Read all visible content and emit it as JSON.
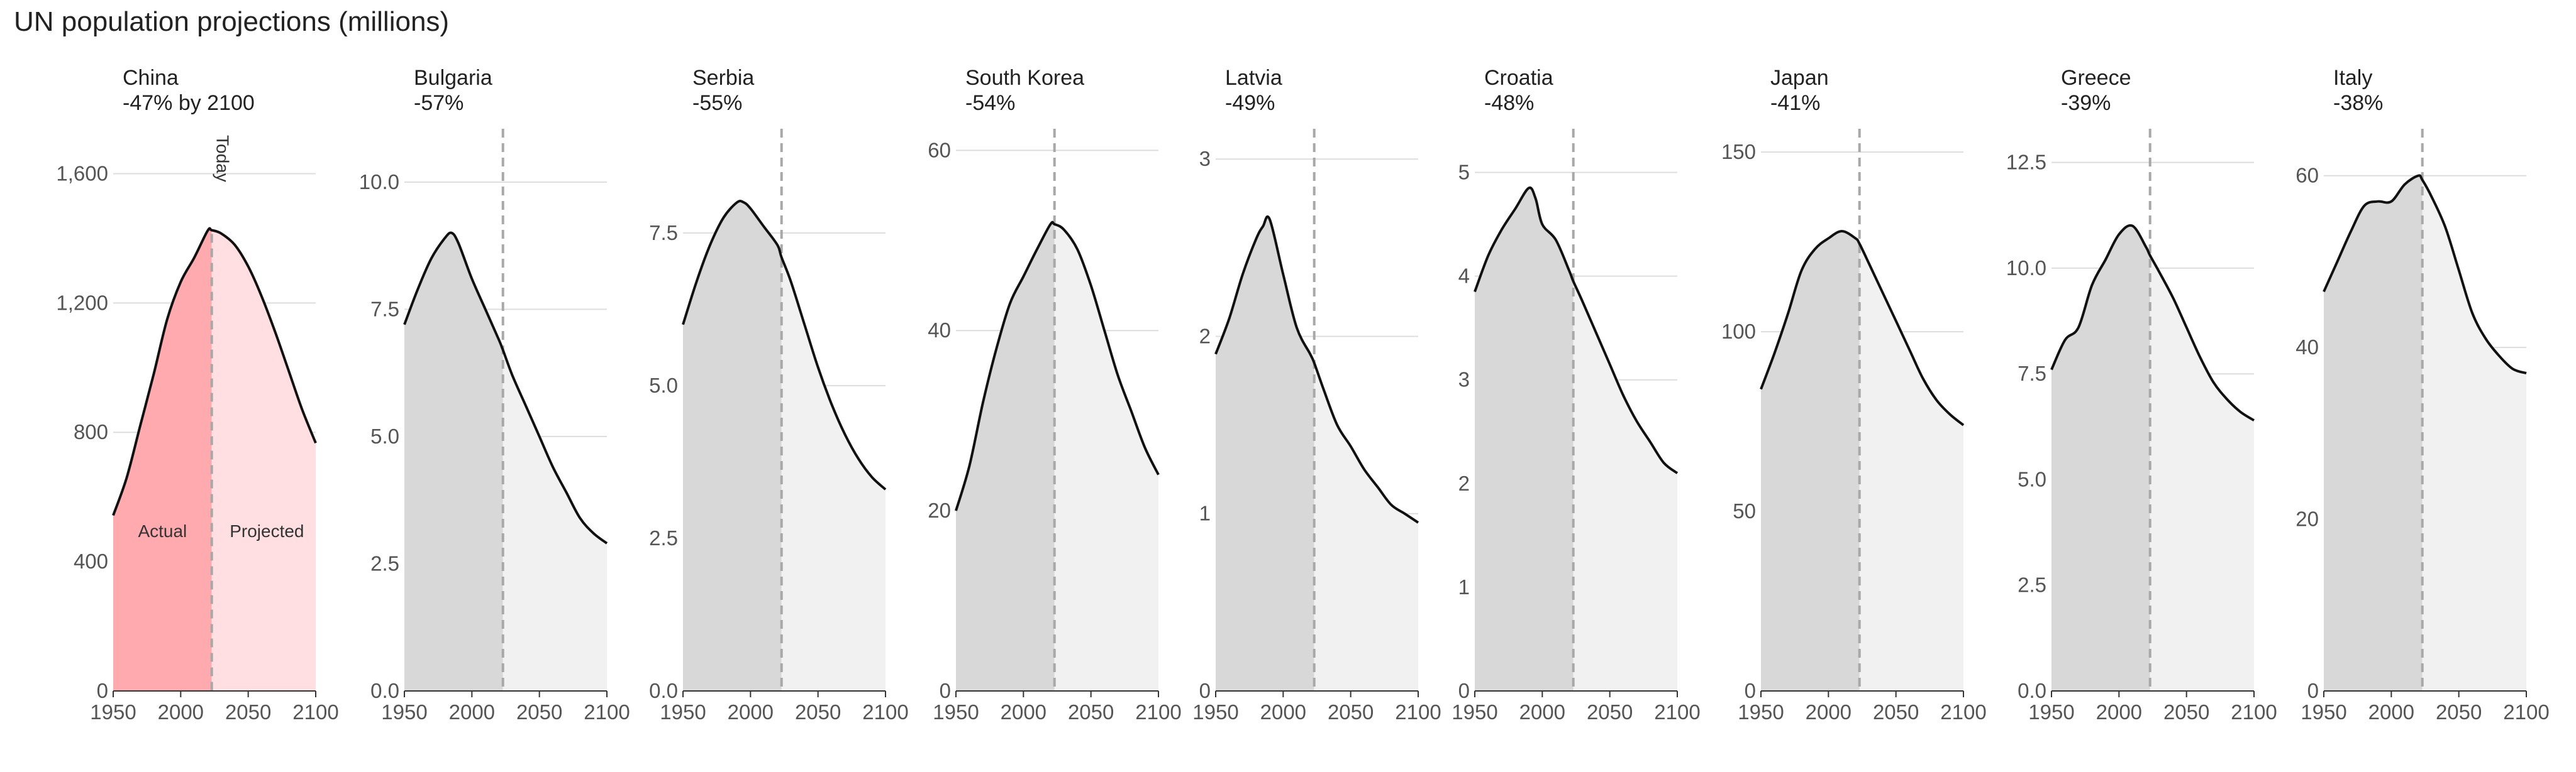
{
  "title": "UN population projections (millions)",
  "colors": {
    "highlight_actual": "#ffaaaf",
    "highlight_projected": "#ffdfe1",
    "gray_actual": "#d8d8d8",
    "gray_projected": "#f1f1f1",
    "line": "#111111",
    "today_line": "#a8a8a8",
    "grid": "#dddddd"
  },
  "annotations": {
    "today": "Today",
    "actual": "Actual",
    "projected": "Projected"
  },
  "chart_data": [
    {
      "type": "area",
      "country": "China",
      "subtitle": "-47% by 2100",
      "highlight": true,
      "x": [
        1950,
        1960,
        1970,
        1980,
        1990,
        2000,
        2010,
        2020,
        2023,
        2030,
        2040,
        2050,
        2060,
        2070,
        2080,
        2090,
        2100
      ],
      "y": [
        543,
        660,
        820,
        980,
        1150,
        1265,
        1340,
        1424,
        1425,
        1415,
        1380,
        1313,
        1220,
        1110,
        990,
        870,
        767
      ],
      "today": 2023,
      "xlim": [
        1950,
        2100
      ],
      "ylim": [
        0,
        1700
      ],
      "yticks": [
        0,
        400,
        800,
        1200,
        1600
      ],
      "ytick_labels": [
        "0",
        "400",
        "800",
        "1,200",
        "1,600"
      ],
      "xticks": [
        1950,
        2000,
        2050,
        2100
      ],
      "xtick_labels": [
        "1950",
        "2000",
        "2050",
        "2100"
      ]
    },
    {
      "type": "area",
      "country": "Bulgaria",
      "subtitle": "-57%",
      "highlight": false,
      "x": [
        1950,
        1960,
        1970,
        1980,
        1985,
        1990,
        2000,
        2010,
        2020,
        2023,
        2030,
        2040,
        2050,
        2060,
        2070,
        2080,
        2090,
        2100
      ],
      "y": [
        7.2,
        7.9,
        8.5,
        8.9,
        9.0,
        8.8,
        8.1,
        7.5,
        6.9,
        6.7,
        6.2,
        5.6,
        5.0,
        4.4,
        3.9,
        3.4,
        3.1,
        2.9
      ],
      "today": 2023,
      "xlim": [
        1950,
        2100
      ],
      "ylim": [
        0,
        10.8
      ],
      "yticks": [
        0,
        2.5,
        5,
        7.5,
        10
      ],
      "ytick_labels": [
        "0.0",
        "2.5",
        "5.0",
        "7.5",
        "10.0"
      ],
      "xticks": [
        1950,
        2000,
        2050,
        2100
      ],
      "xtick_labels": [
        "1950",
        "2000",
        "2050",
        "2100"
      ]
    },
    {
      "type": "area",
      "country": "Serbia",
      "subtitle": "-55%",
      "highlight": false,
      "x": [
        1950,
        1960,
        1970,
        1980,
        1990,
        1995,
        2000,
        2010,
        2020,
        2023,
        2030,
        2040,
        2050,
        2060,
        2070,
        2080,
        2090,
        2100
      ],
      "y": [
        6.0,
        6.7,
        7.3,
        7.75,
        8.0,
        8.0,
        7.9,
        7.6,
        7.3,
        7.1,
        6.7,
        6.0,
        5.3,
        4.7,
        4.2,
        3.8,
        3.5,
        3.3
      ],
      "today": 2023,
      "xlim": [
        1950,
        2100
      ],
      "ylim": [
        0,
        9.0
      ],
      "yticks": [
        0,
        2.5,
        5,
        7.5
      ],
      "ytick_labels": [
        "0.0",
        "2.5",
        "5.0",
        "7.5"
      ],
      "xticks": [
        1950,
        2000,
        2050,
        2100
      ],
      "xtick_labels": [
        "1950",
        "2000",
        "2050",
        "2100"
      ]
    },
    {
      "type": "area",
      "country": "South Korea",
      "subtitle": "-54%",
      "highlight": false,
      "x": [
        1950,
        1960,
        1970,
        1980,
        1990,
        2000,
        2010,
        2020,
        2023,
        2030,
        2040,
        2050,
        2060,
        2070,
        2080,
        2090,
        2100
      ],
      "y": [
        20,
        25,
        32,
        38,
        43,
        46,
        49,
        51.8,
        51.8,
        51.2,
        49,
        45,
        40,
        35,
        31,
        27,
        24
      ],
      "today": 2023,
      "xlim": [
        1950,
        2100
      ],
      "ylim": [
        0,
        61
      ],
      "yticks": [
        0,
        20,
        40,
        60
      ],
      "ytick_labels": [
        "0",
        "20",
        "40",
        "60"
      ],
      "xticks": [
        1950,
        2000,
        2050,
        2100
      ],
      "xtick_labels": [
        "1950",
        "2000",
        "2050",
        "2100"
      ]
    },
    {
      "type": "area",
      "country": "Latvia",
      "subtitle": "-49%",
      "highlight": false,
      "x": [
        1950,
        1960,
        1970,
        1980,
        1985,
        1990,
        2000,
        2010,
        2020,
        2023,
        2030,
        2040,
        2050,
        2060,
        2070,
        2080,
        2090,
        2100
      ],
      "y": [
        1.9,
        2.1,
        2.35,
        2.55,
        2.62,
        2.66,
        2.35,
        2.05,
        1.9,
        1.85,
        1.7,
        1.5,
        1.38,
        1.25,
        1.15,
        1.05,
        1.0,
        0.95
      ],
      "today": 2023,
      "xlim": [
        1950,
        2100
      ],
      "ylim": [
        0,
        3.1
      ],
      "yticks": [
        0,
        1,
        2,
        3
      ],
      "ytick_labels": [
        "0",
        "1",
        "2",
        "3"
      ],
      "xticks": [
        1950,
        2000,
        2050,
        2100
      ],
      "xtick_labels": [
        "1950",
        "2000",
        "2050",
        "2100"
      ]
    },
    {
      "type": "area",
      "country": "Croatia",
      "subtitle": "-48%",
      "highlight": false,
      "x": [
        1950,
        1960,
        1970,
        1980,
        1990,
        1995,
        2000,
        2010,
        2020,
        2023,
        2030,
        2040,
        2050,
        2060,
        2070,
        2080,
        2090,
        2100
      ],
      "y": [
        3.85,
        4.2,
        4.45,
        4.65,
        4.85,
        4.75,
        4.5,
        4.35,
        4.05,
        3.95,
        3.75,
        3.45,
        3.15,
        2.85,
        2.6,
        2.4,
        2.2,
        2.1
      ],
      "today": 2023,
      "xlim": [
        1950,
        2100
      ],
      "ylim": [
        0,
        5.3
      ],
      "yticks": [
        0,
        1,
        2,
        3,
        4,
        5
      ],
      "ytick_labels": [
        "0",
        "1",
        "2",
        "3",
        "4",
        "5"
      ],
      "xticks": [
        1950,
        2000,
        2050,
        2100
      ],
      "xtick_labels": [
        "1950",
        "2000",
        "2050",
        "2100"
      ]
    },
    {
      "type": "area",
      "country": "Japan",
      "subtitle": "-41%",
      "highlight": false,
      "x": [
        1950,
        1960,
        1970,
        1980,
        1990,
        2000,
        2010,
        2020,
        2023,
        2030,
        2040,
        2050,
        2060,
        2070,
        2080,
        2090,
        2100
      ],
      "y": [
        84,
        94,
        105,
        117,
        123,
        126,
        128,
        126,
        124.5,
        119,
        111,
        103,
        95,
        87,
        81,
        77,
        74
      ],
      "today": 2023,
      "xlim": [
        1950,
        2100
      ],
      "ylim": [
        0,
        153
      ],
      "yticks": [
        0,
        50,
        100,
        150
      ],
      "ytick_labels": [
        "0",
        "50",
        "100",
        "150"
      ],
      "xticks": [
        1950,
        2000,
        2050,
        2100
      ],
      "xtick_labels": [
        "1950",
        "2000",
        "2050",
        "2100"
      ]
    },
    {
      "type": "area",
      "country": "Greece",
      "subtitle": "-39%",
      "highlight": false,
      "x": [
        1950,
        1960,
        1970,
        1980,
        1990,
        2000,
        2010,
        2020,
        2023,
        2030,
        2040,
        2050,
        2060,
        2070,
        2080,
        2090,
        2100
      ],
      "y": [
        7.6,
        8.3,
        8.6,
        9.6,
        10.2,
        10.8,
        11.0,
        10.5,
        10.3,
        9.9,
        9.3,
        8.6,
        7.9,
        7.3,
        6.9,
        6.6,
        6.4
      ],
      "today": 2023,
      "xlim": [
        1950,
        2100
      ],
      "ylim": [
        0,
        13.0
      ],
      "yticks": [
        0,
        2.5,
        5,
        7.5,
        10,
        12.5
      ],
      "ytick_labels": [
        "0.0",
        "2.5",
        "5.0",
        "7.5",
        "10.0",
        "12.5"
      ],
      "xticks": [
        1950,
        2000,
        2050,
        2100
      ],
      "xtick_labels": [
        "1950",
        "2000",
        "2050",
        "2100"
      ]
    },
    {
      "type": "area",
      "country": "Italy",
      "subtitle": "-38%",
      "highlight": false,
      "x": [
        1950,
        1960,
        1970,
        1980,
        1990,
        2000,
        2010,
        2020,
        2023,
        2030,
        2040,
        2050,
        2060,
        2070,
        2080,
        2090,
        2100
      ],
      "y": [
        46.5,
        50,
        53.5,
        56.5,
        57,
        57,
        59,
        60,
        59.5,
        57.5,
        54,
        49,
        44,
        41,
        39,
        37.5,
        37
      ],
      "today": 2023,
      "xlim": [
        1950,
        2100
      ],
      "ylim": [
        0,
        64
      ],
      "yticks": [
        0,
        20,
        40,
        60
      ],
      "ytick_labels": [
        "0",
        "20",
        "40",
        "60"
      ],
      "xticks": [
        1950,
        2000,
        2050,
        2100
      ],
      "xtick_labels": [
        "1950",
        "2000",
        "2050",
        "2100"
      ]
    }
  ]
}
